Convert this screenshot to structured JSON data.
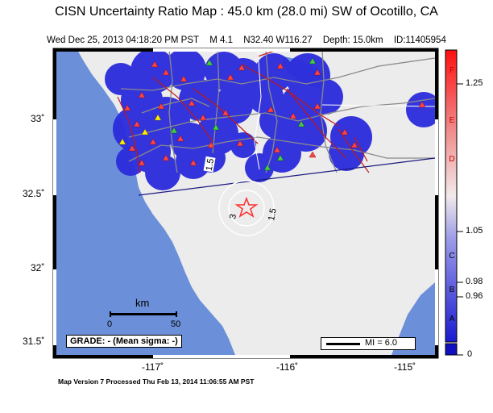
{
  "title": "CISN Uncertainty Ratio Map : 45.0 km (28.0 mi) SW of Ocotillo, CA",
  "subtitle": {
    "datetime": "Wed Dec 25, 2013 04:18:20 PM PST",
    "magnitude": "M 4.1",
    "location": "N32.40 W116.27",
    "depth": "Depth: 15.0km",
    "id": "ID:11405954"
  },
  "footer": "Map Version 7 Processed Thu Feb 13, 2014 11:06:55 AM PST",
  "lat_labels": [
    "33˚",
    "32.5˚",
    "32˚",
    "31.5˚"
  ],
  "lon_labels": [
    "-117˚",
    "-116˚",
    "-115˚"
  ],
  "scale_bar": {
    "tick_labels": [
      "F",
      "E",
      "D",
      "C",
      "B",
      "A"
    ],
    "value_labels": [
      "1.25",
      "1.05",
      "0.98",
      "0.96",
      "0"
    ]
  },
  "km_scale": {
    "unit": "km",
    "ticks": [
      "0",
      "50"
    ]
  },
  "grade_text": "GRADE: - (Mean sigma: -)",
  "mi_legend": "MI = 6.0",
  "contour_labels": [
    "1.5",
    "1.5",
    "3"
  ],
  "colors": {
    "ocean": "#6b8fd9",
    "land": "#ececec",
    "uncertainty_blob": "#2b2bdc",
    "fault": "#c01818",
    "road": "#8a8a8a",
    "station_red": "#ff4444",
    "station_green": "#44cc44",
    "station_yellow": "#ffee00",
    "epicenter": "#ff3333"
  }
}
